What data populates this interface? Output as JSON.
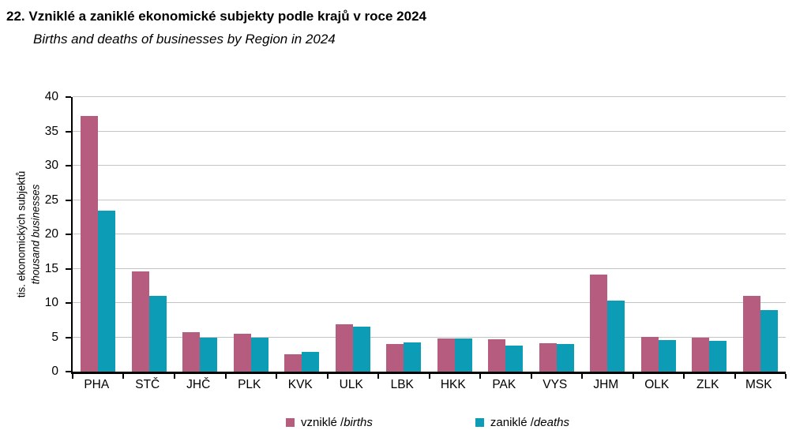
{
  "header": {
    "title": "22. Vzniklé a zaniklé ekonomické subjekty podle krajů v roce 2024",
    "subtitle": "Births and deaths of businesses by Region in 2024"
  },
  "colors": {
    "births": "#b65c7f",
    "deaths": "#0d9cb5",
    "gridline": "#c4c4c4",
    "axis": "#000000"
  },
  "chart_data": {
    "type": "bar",
    "title": "22. Vzniklé a zaniklé ekonomické subjekty podle krajů v roce 2024",
    "subtitle": "Births and deaths of businesses by Region in 2024",
    "ylabel_cz": "tis. ekonomických subjektů",
    "ylabel_en": "thousand businesses",
    "xlabel": "",
    "ylim": [
      0,
      40
    ],
    "yticks": [
      0,
      5,
      10,
      15,
      20,
      25,
      30,
      35,
      40
    ],
    "grid": true,
    "legend_position": "bottom",
    "categories": [
      "PHA",
      "STČ",
      "JHČ",
      "PLK",
      "KVK",
      "ULK",
      "LBK",
      "HKK",
      "PAK",
      "VYS",
      "JHM",
      "OLK",
      "ZLK",
      "MSK"
    ],
    "series": [
      {
        "id": "births",
        "name": "vzniklé / births",
        "color": "#b65c7f",
        "values": [
          37.2,
          14.6,
          5.8,
          5.5,
          2.5,
          6.9,
          4.0,
          4.8,
          4.7,
          4.1,
          14.1,
          5.1,
          5.0,
          11.0
        ]
      },
      {
        "id": "deaths",
        "name": "zaniklé / deaths",
        "color": "#0d9cb5",
        "values": [
          23.4,
          11.0,
          5.0,
          5.0,
          2.9,
          6.5,
          4.2,
          4.8,
          3.8,
          4.0,
          10.3,
          4.6,
          4.5,
          9.0
        ]
      }
    ],
    "legend": [
      {
        "label_cz": "vzniklé / ",
        "label_en": "births",
        "color": "#b65c7f"
      },
      {
        "label_cz": "zaniklé / ",
        "label_en": "deaths",
        "color": "#0d9cb5"
      }
    ]
  }
}
